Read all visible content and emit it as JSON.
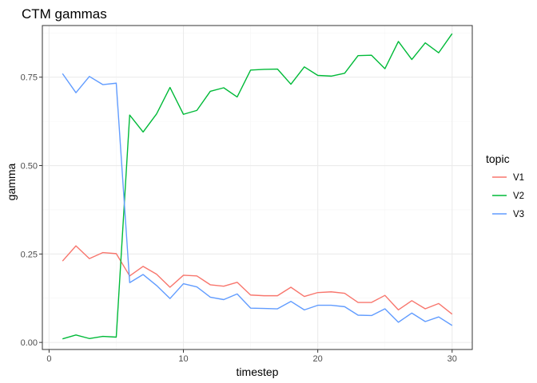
{
  "chart_data": {
    "type": "line",
    "title": "CTM gammas",
    "xlabel": "timestep",
    "ylabel": "gamma",
    "xlim": [
      -0.5,
      31.5
    ],
    "ylim": [
      -0.02,
      0.896
    ],
    "x_ticks": [
      0,
      10,
      20,
      30
    ],
    "x_minor_ticks": [
      5,
      15,
      25
    ],
    "y_ticks": [
      0.0,
      0.25,
      0.5,
      0.75
    ],
    "y_tick_labels": [
      "0.00",
      "0.25",
      "0.50",
      "0.75"
    ],
    "y_minor_ticks": [
      0.125,
      0.375,
      0.625,
      0.875
    ],
    "grid": true,
    "legend": {
      "title": "topic",
      "position": "right"
    },
    "x": [
      1,
      2,
      3,
      4,
      5,
      6,
      7,
      8,
      9,
      10,
      11,
      12,
      13,
      14,
      15,
      16,
      17,
      18,
      19,
      20,
      21,
      22,
      23,
      24,
      25,
      26,
      27,
      28,
      29,
      30
    ],
    "series": [
      {
        "name": "V1",
        "color": "#F8766D",
        "values": [
          0.23,
          0.273,
          0.237,
          0.254,
          0.251,
          0.188,
          0.215,
          0.193,
          0.156,
          0.19,
          0.188,
          0.163,
          0.159,
          0.17,
          0.134,
          0.132,
          0.132,
          0.156,
          0.13,
          0.141,
          0.143,
          0.139,
          0.113,
          0.113,
          0.133,
          0.092,
          0.118,
          0.095,
          0.11,
          0.08
        ]
      },
      {
        "name": "V2",
        "color": "#00BA38",
        "values": [
          0.01,
          0.021,
          0.011,
          0.017,
          0.015,
          0.643,
          0.595,
          0.646,
          0.721,
          0.645,
          0.656,
          0.71,
          0.72,
          0.694,
          0.77,
          0.772,
          0.773,
          0.73,
          0.779,
          0.755,
          0.753,
          0.761,
          0.811,
          0.812,
          0.774,
          0.851,
          0.8,
          0.847,
          0.819,
          0.873
        ]
      },
      {
        "name": "V3",
        "color": "#619CFF",
        "values": [
          0.76,
          0.706,
          0.752,
          0.729,
          0.733,
          0.169,
          0.192,
          0.161,
          0.124,
          0.166,
          0.157,
          0.128,
          0.121,
          0.137,
          0.097,
          0.096,
          0.095,
          0.116,
          0.092,
          0.105,
          0.105,
          0.101,
          0.077,
          0.076,
          0.095,
          0.057,
          0.083,
          0.059,
          0.072,
          0.048
        ]
      }
    ]
  }
}
